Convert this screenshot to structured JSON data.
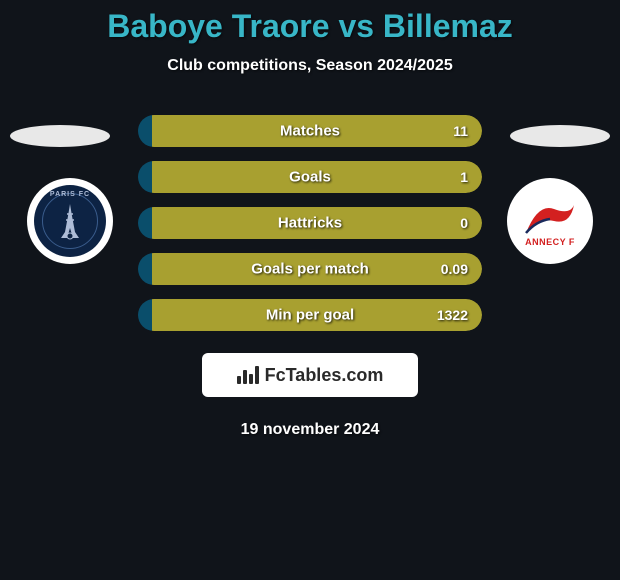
{
  "title": {
    "player1": "Baboye Traore",
    "vs": "vs",
    "player2": "Billemaz",
    "player1_color": "#38b6c7",
    "vs_color": "#38b6c7",
    "player2_color": "#38b6c7"
  },
  "subtitle": "Club competitions, Season 2024/2025",
  "left_color": "#0a4e6b",
  "right_color": "#a8a030",
  "background_color": "#10141a",
  "stats": [
    {
      "label": "Matches",
      "left_val": "",
      "right_val": "11",
      "left_pct": 4
    },
    {
      "label": "Goals",
      "left_val": "",
      "right_val": "1",
      "left_pct": 4
    },
    {
      "label": "Hattricks",
      "left_val": "",
      "right_val": "0",
      "left_pct": 4
    },
    {
      "label": "Goals per match",
      "left_val": "",
      "right_val": "0.09",
      "left_pct": 4
    },
    {
      "label": "Min per goal",
      "left_val": "",
      "right_val": "1322",
      "left_pct": 4
    }
  ],
  "club_left": {
    "name": "Paris FC",
    "label_top": "PARIS FC"
  },
  "club_right": {
    "name": "Annecy FC",
    "label": "ANNECY F"
  },
  "brand": "FcTables.com",
  "date": "19 november 2024"
}
